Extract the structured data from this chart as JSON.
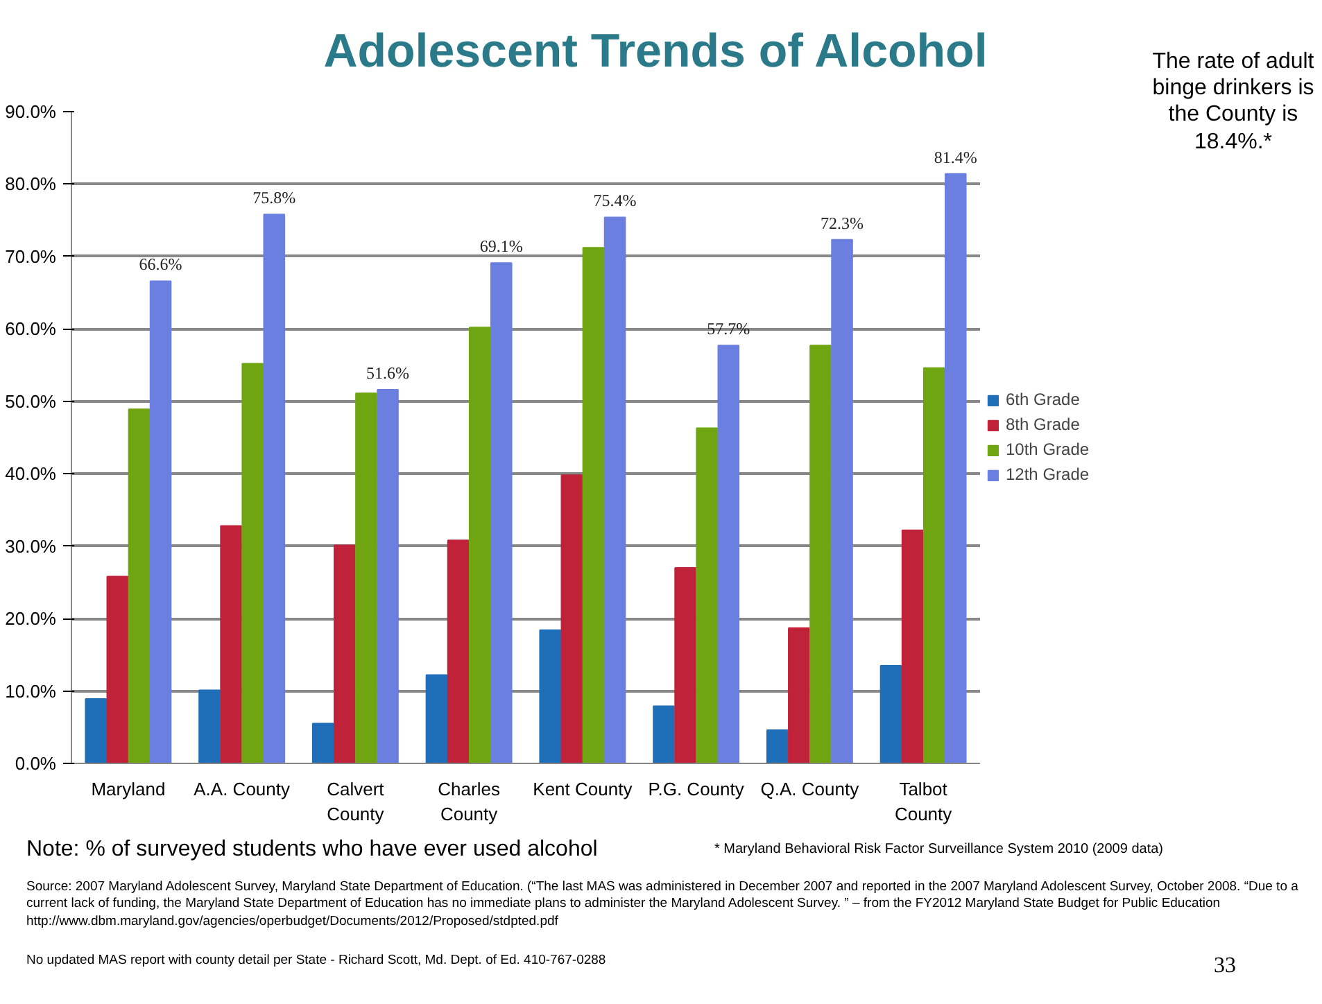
{
  "chart_data": {
    "type": "bar",
    "title": "Adolescent Trends of Alcohol",
    "categories": [
      "Maryland",
      "A.A. County",
      "Calvert County",
      "Charles County",
      "Kent County",
      "P.G. County",
      "Q.A. County",
      "Talbot County"
    ],
    "series": [
      {
        "name": "6th Grade",
        "color": "#1f6fb8",
        "values": [
          8.9,
          10.1,
          5.5,
          12.2,
          18.4,
          7.9,
          4.6,
          13.5
        ]
      },
      {
        "name": "8th Grade",
        "color": "#c0223a",
        "values": [
          25.8,
          32.8,
          30.1,
          30.8,
          39.8,
          27.0,
          18.7,
          32.2
        ]
      },
      {
        "name": "10th Grade",
        "color": "#6fa511",
        "values": [
          48.9,
          55.2,
          51.1,
          60.2,
          71.2,
          46.3,
          57.7,
          54.6
        ]
      },
      {
        "name": "12th Grade",
        "color": "#6a7fe0",
        "values": [
          66.6,
          75.8,
          51.6,
          69.1,
          75.4,
          57.7,
          72.3,
          81.4
        ],
        "value_labels": [
          "66.6%",
          "75.8%",
          "51.6%",
          "69.1%",
          "75.4%",
          "57.7%",
          "72.3%",
          "81.4%"
        ]
      }
    ],
    "ylim": [
      0,
      90
    ],
    "yticks": [
      {
        "value": 0,
        "label": "0.0%"
      },
      {
        "value": 10,
        "label": "10.0%"
      },
      {
        "value": 20,
        "label": "20.0%"
      },
      {
        "value": 30,
        "label": "30.0%"
      },
      {
        "value": 40,
        "label": "40.0%"
      },
      {
        "value": 50,
        "label": "50.0%"
      },
      {
        "value": 60,
        "label": "60.0%"
      },
      {
        "value": 70,
        "label": "70.0%"
      },
      {
        "value": 80,
        "label": "80.0%"
      },
      {
        "value": 90,
        "label": "90.0%"
      }
    ],
    "grid": "y",
    "legend": "right",
    "annotations": [
      "The rate of adult binge drinkers is the County is 18.4%.*",
      "Note:  % of surveyed students who have ever used alcohol",
      "* Maryland Behavioral Risk Factor Surveillance System 2010 (2009 data)",
      "Source:  2007 Maryland Adolescent Survey, Maryland State Department of Education. (“The last MAS was administered in December 2007 and reported in the 2007 Maryland Adolescent Survey, October 2008. “Due to a current lack of funding, the Maryland State Department of Education has no immediate plans to administer the Maryland Adolescent Survey. ” – from the FY2012 Maryland State Budget  for Public Education http://www.dbm.maryland.gov/agencies/operbudget/Documents/2012/Proposed/stdpted.pdf",
      "No updated MAS report with county detail per State - Richard Scott, Md. Dept. of Ed. 410-767-0288",
      "33"
    ]
  }
}
